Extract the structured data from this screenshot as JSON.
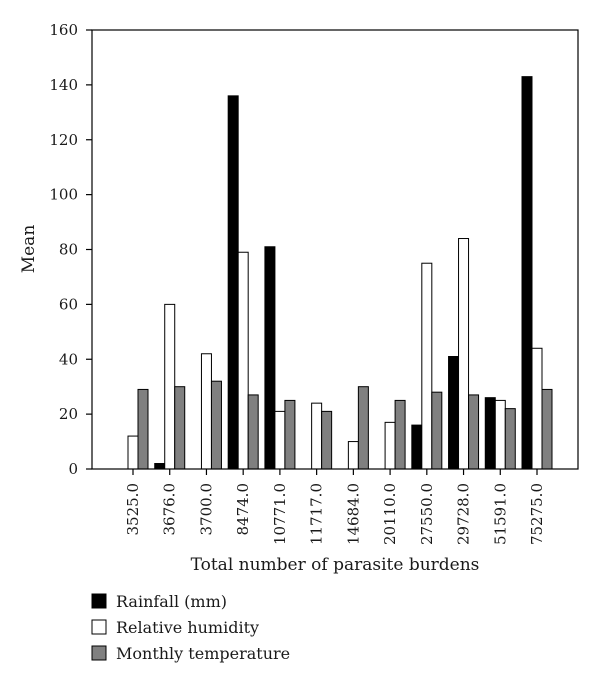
{
  "chart_data": {
    "type": "bar",
    "title": "",
    "xlabel": "Total number of parasite burdens",
    "ylabel": "Mean",
    "ylim": [
      0,
      160
    ],
    "yticks": [
      0,
      20,
      40,
      60,
      80,
      100,
      120,
      140,
      160
    ],
    "categories": [
      "3525.0",
      "3676.0",
      "3700.0",
      "8474.0",
      "10771.0",
      "11717.0",
      "14684.0",
      "20110.0",
      "27550.0",
      "29728.0",
      "51591.0",
      "75275.0"
    ],
    "series": [
      {
        "name": "Rainfall (mm)",
        "color": "#000000",
        "values": [
          0,
          2,
          0,
          136,
          81,
          0,
          0,
          0,
          16,
          41,
          26,
          143
        ]
      },
      {
        "name": "Relative humidity",
        "color": "#ffffff",
        "values": [
          12,
          60,
          42,
          79,
          21,
          24,
          10,
          17,
          75,
          84,
          25,
          44
        ]
      },
      {
        "name": "Monthly temperature",
        "color": "#808080",
        "values": [
          29,
          30,
          32,
          27,
          25,
          21,
          30,
          25,
          28,
          27,
          22,
          29
        ]
      }
    ],
    "grid": false,
    "legend_position": "bottom-left"
  }
}
